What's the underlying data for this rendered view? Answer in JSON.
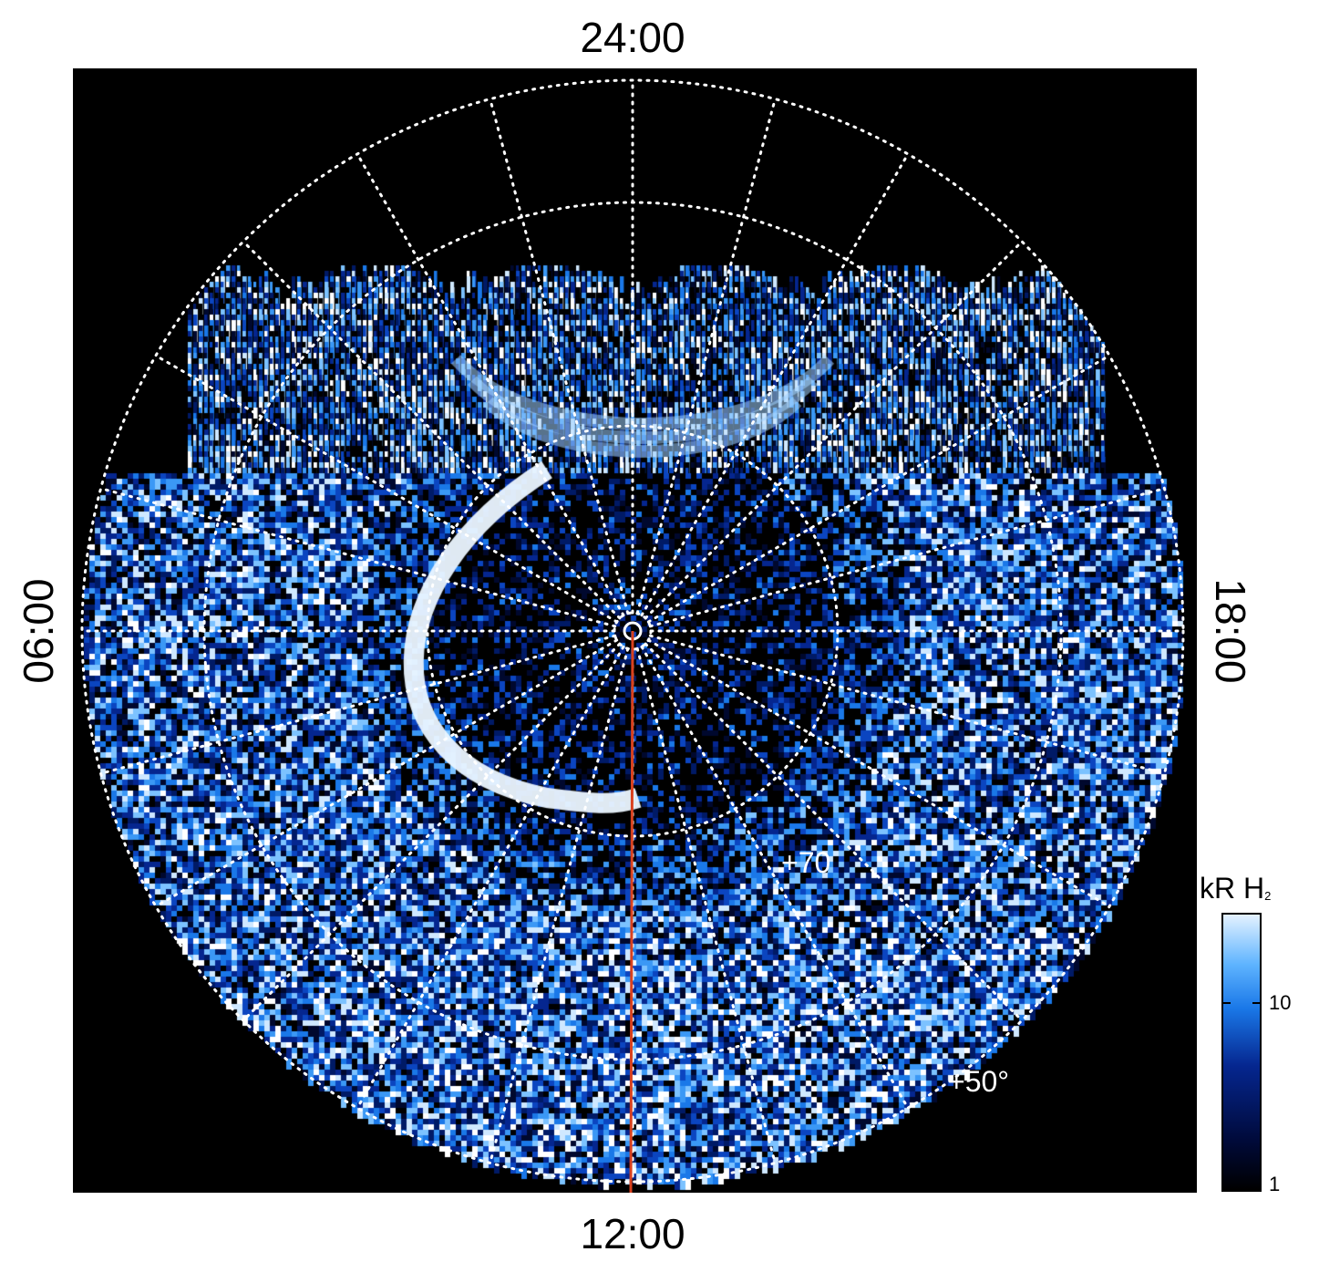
{
  "labels": {
    "top": "24:00",
    "bottom": "12:00",
    "left": "06:00",
    "right": "18:00"
  },
  "latitude_labels": {
    "inner": "+70",
    "outer": "+50°"
  },
  "colorbar": {
    "title_main": "kR H",
    "title_sub": "2",
    "tick_high": "10",
    "tick_low": "1",
    "scale": "log",
    "range": [
      1,
      30
    ]
  },
  "colors": {
    "background": "#000000",
    "grid": "#ffffff",
    "noon_meridian": "#d9411e",
    "map_dark": "#00114d",
    "map_mid": "#1a78e8",
    "map_light": "#e4f2ff"
  },
  "grid": {
    "style": "dotted",
    "latitude_circles_deg": [
      50,
      70,
      85
    ],
    "meridian_spacing_hours": 1
  }
}
